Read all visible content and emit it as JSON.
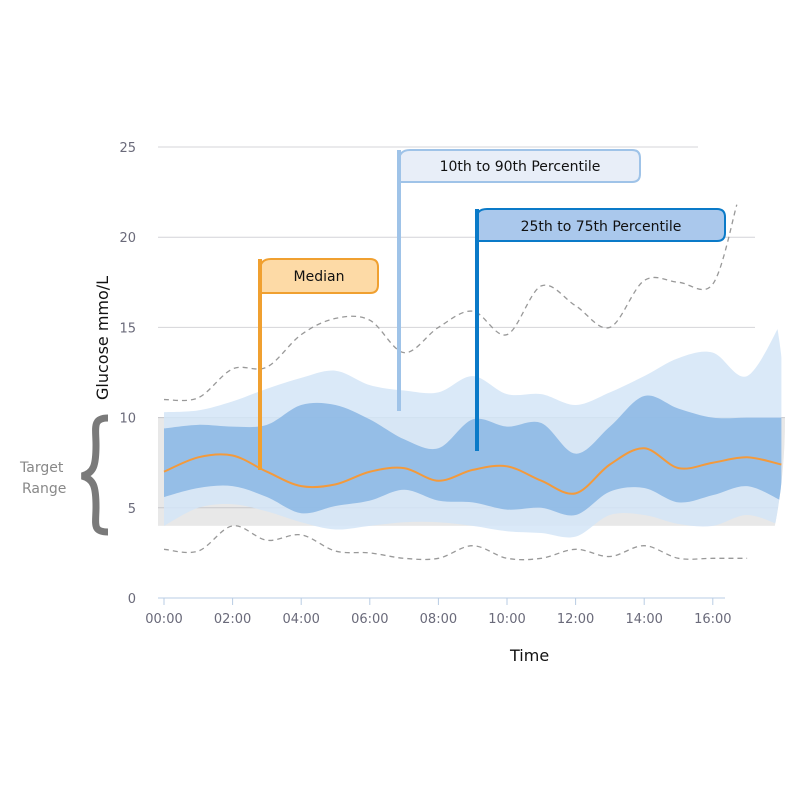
{
  "chart_data": {
    "type": "area",
    "xlabel": "Time",
    "ylabel": "Glucose mmo/L",
    "ylim": [
      0,
      25
    ],
    "yticks": [
      "0",
      "5",
      "10",
      "15",
      "20",
      "25"
    ],
    "xticks": [
      "00:00",
      "02:00",
      "04:00",
      "06:00",
      "08:00",
      "10:00",
      "12:00",
      "14:00",
      "16:00"
    ],
    "grid": true,
    "target_range": {
      "label_line1": "Target",
      "label_line2": "Range",
      "low": 4,
      "high": 10
    },
    "hours": [
      0,
      1,
      2,
      3,
      4,
      5,
      6,
      7,
      8,
      9,
      10,
      11,
      12,
      13,
      14,
      15,
      16,
      17,
      18
    ],
    "series": [
      {
        "name": "Median",
        "color": "#f39a3c",
        "values": [
          7.0,
          7.8,
          7.9,
          7.0,
          6.2,
          6.3,
          7.0,
          7.2,
          6.5,
          7.1,
          7.3,
          6.5,
          5.8,
          7.4,
          8.3,
          7.2,
          7.5,
          7.8,
          7.4
        ]
      },
      {
        "name": "25th to 75th Percentile",
        "color": "#8ab6e4",
        "upper": [
          9.4,
          9.6,
          9.5,
          9.6,
          10.7,
          10.7,
          9.9,
          8.8,
          8.3,
          9.9,
          9.5,
          9.7,
          8.0,
          9.5,
          11.2,
          10.5,
          10.0,
          10.0,
          10.0
        ],
        "lower": [
          5.6,
          6.1,
          6.2,
          5.6,
          4.7,
          5.1,
          5.4,
          6.0,
          5.4,
          5.3,
          4.9,
          5.0,
          4.6,
          5.9,
          6.1,
          5.3,
          5.7,
          6.2,
          5.4
        ]
      },
      {
        "name": "10th to 90th Percentile",
        "color": "#d3e5f7",
        "upper": [
          10.3,
          10.4,
          10.9,
          11.6,
          12.2,
          12.6,
          11.8,
          11.5,
          11.4,
          12.3,
          11.3,
          11.3,
          10.7,
          11.4,
          12.3,
          13.3,
          13.6,
          12.3,
          15.3
        ],
        "lower": [
          4.0,
          5.0,
          5.2,
          4.8,
          4.2,
          3.8,
          4.0,
          4.2,
          4.2,
          4.0,
          3.7,
          3.6,
          3.4,
          4.6,
          4.6,
          4.1,
          4.0,
          4.6,
          4.0
        ]
      },
      {
        "color": "#999999",
        "hours": [
          0,
          1,
          2,
          3,
          4,
          5,
          6,
          7,
          8,
          9,
          10,
          11,
          12,
          13,
          14,
          15,
          16,
          16.7
        ],
        "values": [
          11.0,
          11.1,
          12.7,
          12.8,
          14.6,
          15.5,
          15.4,
          13.6,
          15.0,
          15.9,
          14.6,
          17.3,
          16.2,
          15.0,
          17.6,
          17.5,
          17.4,
          21.8
        ]
      },
      {
        "color": "#999999",
        "hours": [
          0,
          1,
          2,
          3,
          4,
          5,
          6,
          7,
          8,
          9,
          10,
          11,
          12,
          13,
          14,
          15,
          16,
          17
        ],
        "values": [
          2.7,
          2.6,
          4.0,
          3.2,
          3.5,
          2.6,
          2.5,
          2.2,
          2.2,
          2.9,
          2.2,
          2.2,
          2.7,
          2.3,
          2.9,
          2.2,
          2.2,
          2.2
        ]
      }
    ],
    "callouts": {
      "median": "Median",
      "p10_90": "10th to 90th Percentile",
      "p25_75": "25th to 75th Percentile"
    }
  }
}
